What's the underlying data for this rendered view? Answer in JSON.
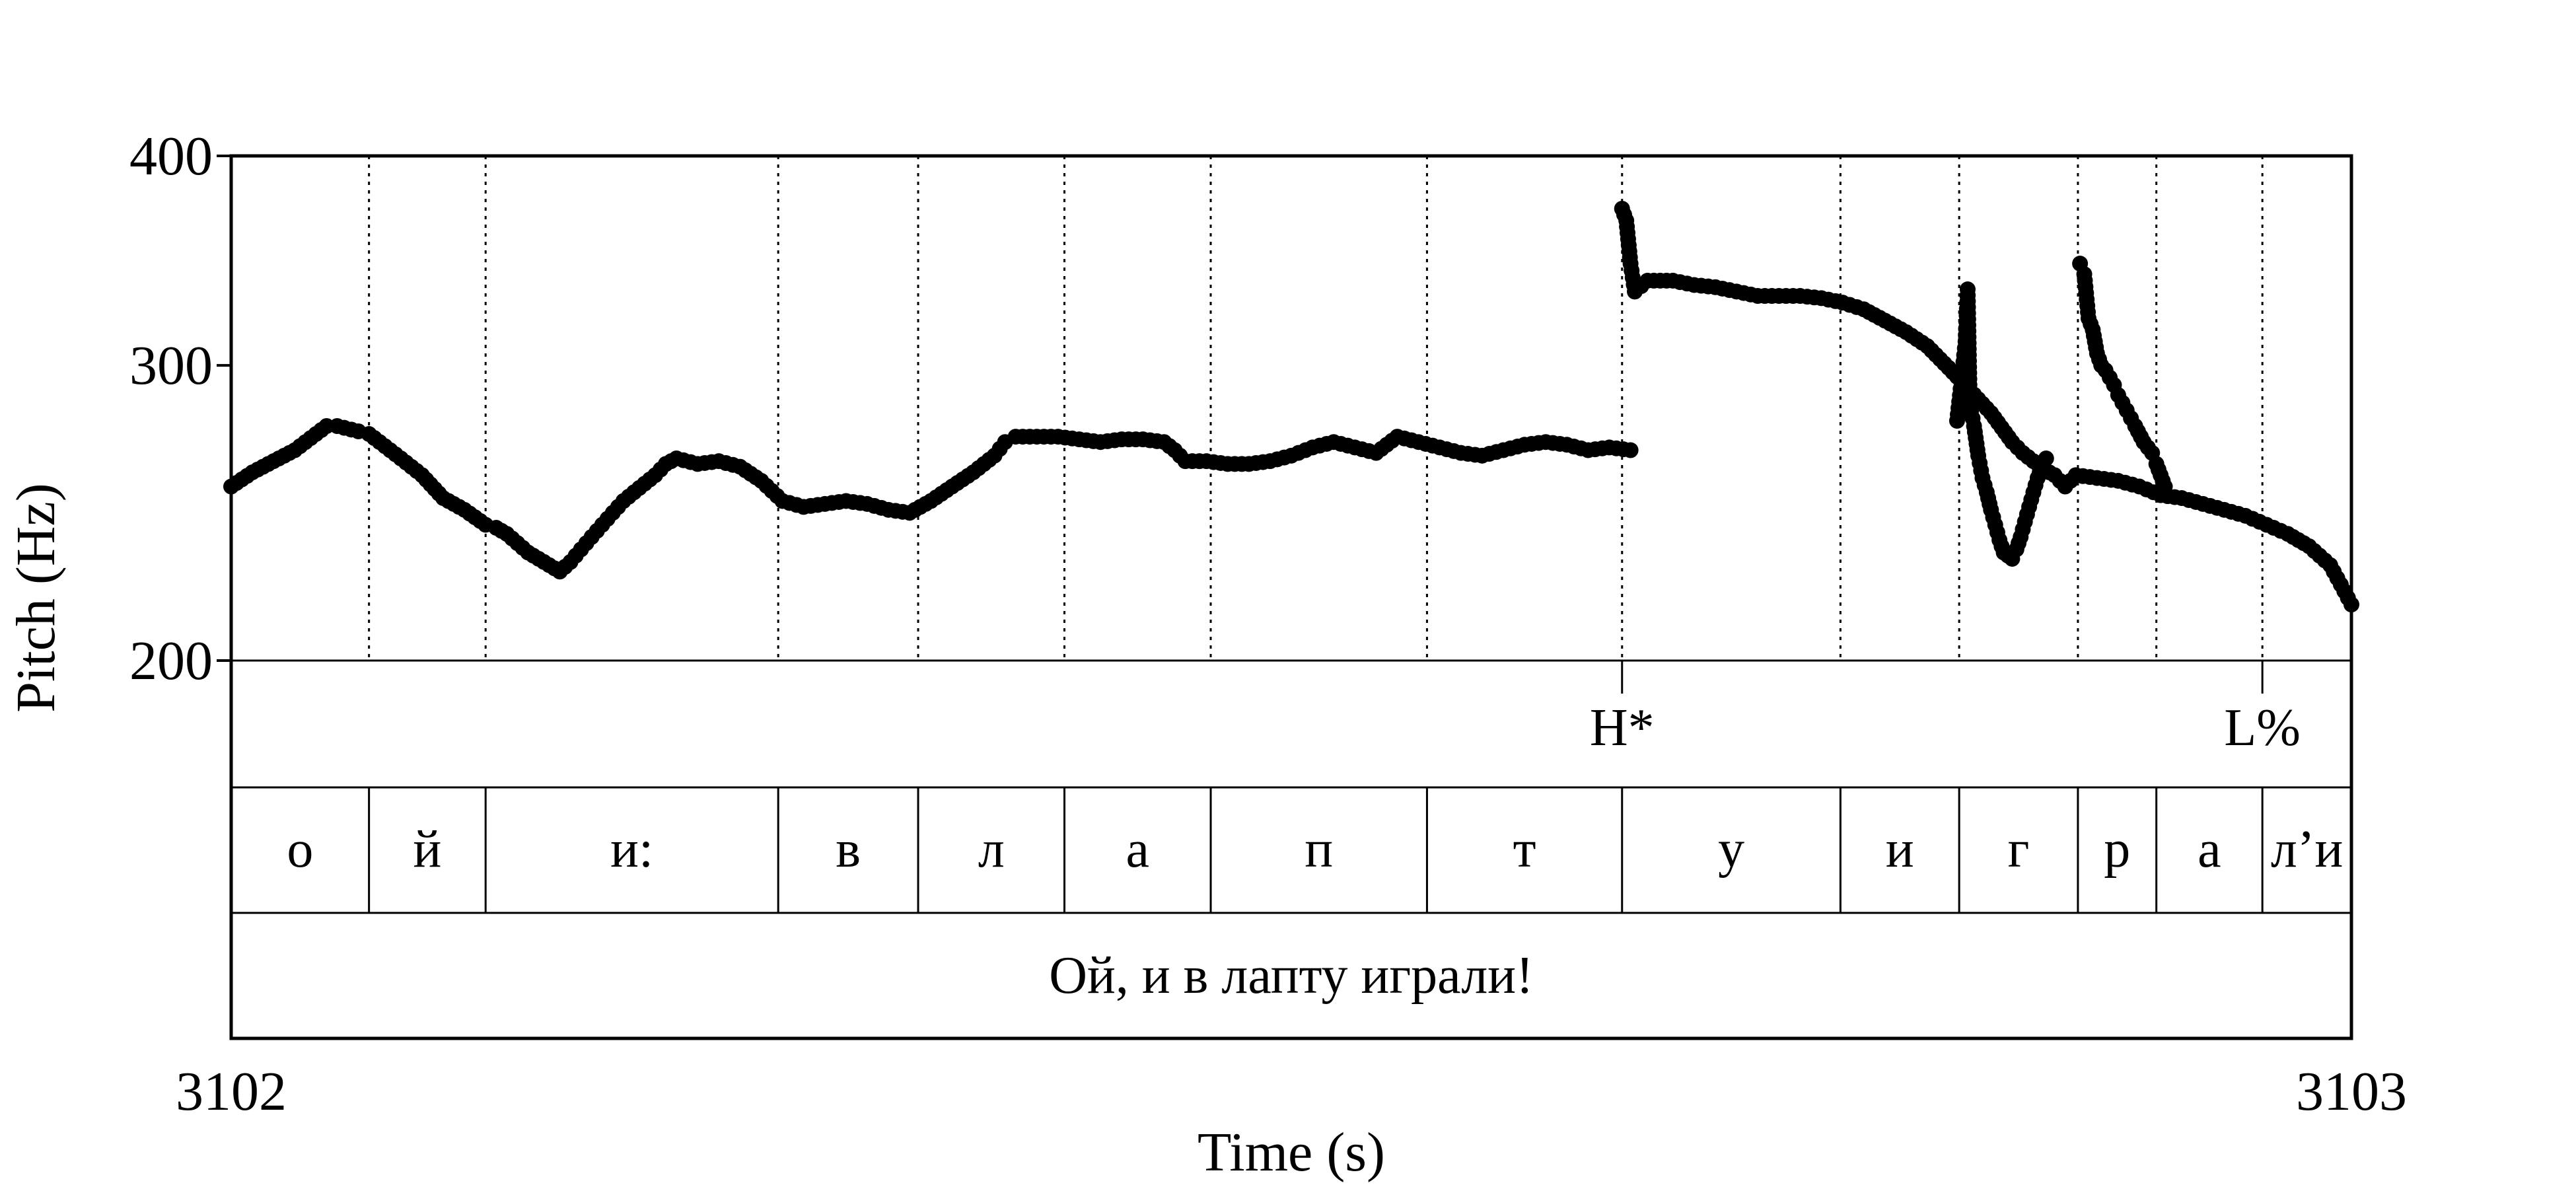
{
  "chart_data": {
    "type": "scatter",
    "title": "",
    "xlabel": "Time (s)",
    "ylabel": "Pitch (Hz)",
    "xlim": [
      3102,
      3103
    ],
    "ylim": [
      200,
      400
    ],
    "y_scale": "log",
    "x_tick_labels": [
      "3102",
      "3103"
    ],
    "y_tick_labels": [
      "400",
      "300",
      "200"
    ],
    "y_ticks": [
      400,
      300,
      200
    ],
    "grid": false,
    "boundaries": [
      3102.065,
      3102.12,
      3102.258,
      3102.324,
      3102.393,
      3102.462,
      3102.564,
      3102.656,
      3102.759,
      3102.815,
      3102.871,
      3102.908,
      3102.958
    ],
    "tones": [
      {
        "label": "H*",
        "time": 3102.656
      },
      {
        "label": "L%",
        "time": 3102.958
      }
    ],
    "segments": [
      {
        "label": "о",
        "start": 3102.0,
        "end": 3102.065
      },
      {
        "label": "й",
        "start": 3102.065,
        "end": 3102.12
      },
      {
        "label": "и:",
        "start": 3102.12,
        "end": 3102.258
      },
      {
        "label": "в",
        "start": 3102.258,
        "end": 3102.324
      },
      {
        "label": "л",
        "start": 3102.324,
        "end": 3102.393
      },
      {
        "label": "а",
        "start": 3102.393,
        "end": 3102.462
      },
      {
        "label": "п",
        "start": 3102.462,
        "end": 3102.564
      },
      {
        "label": "т",
        "start": 3102.564,
        "end": 3102.656
      },
      {
        "label": "у",
        "start": 3102.656,
        "end": 3102.759
      },
      {
        "label": "и",
        "start": 3102.759,
        "end": 3102.815
      },
      {
        "label": "г",
        "start": 3102.815,
        "end": 3102.871
      },
      {
        "label": "р",
        "start": 3102.871,
        "end": 3102.908
      },
      {
        "label": "а",
        "start": 3102.908,
        "end": 3102.958
      },
      {
        "label": "л’и",
        "start": 3102.958,
        "end": 3103.0
      }
    ],
    "sentence": "Ой, и в лапту играли!",
    "series": [
      {
        "values": [
          [
            3102.0,
            254
          ],
          [
            3102.01,
            259
          ],
          [
            3102.02,
            263
          ],
          [
            3102.03,
            267
          ],
          [
            3102.04,
            273
          ],
          [
            3102.045,
            276
          ],
          [
            3102.05,
            276
          ],
          [
            3102.06,
            274
          ],
          [
            3102.065,
            273
          ],
          [
            3102.07,
            270
          ],
          [
            3102.08,
            264
          ],
          [
            3102.09,
            258
          ],
          [
            3102.1,
            250
          ],
          [
            3102.11,
            246
          ],
          [
            3102.12,
            241
          ],
          [
            3102.125,
            240
          ],
          [
            3102.13,
            238
          ],
          [
            3102.135,
            235
          ],
          [
            3102.14,
            232
          ],
          [
            3102.145,
            230
          ],
          [
            3102.15,
            228
          ],
          [
            3102.155,
            226
          ],
          [
            3102.16,
            229
          ],
          [
            3102.165,
            233
          ],
          [
            3102.17,
            237
          ],
          [
            3102.175,
            241
          ],
          [
            3102.18,
            245
          ],
          [
            3102.185,
            249
          ],
          [
            3102.19,
            252
          ],
          [
            3102.195,
            255
          ],
          [
            3102.2,
            258
          ],
          [
            3102.205,
            262
          ],
          [
            3102.21,
            264
          ],
          [
            3102.22,
            262
          ],
          [
            3102.23,
            263
          ],
          [
            3102.24,
            261
          ],
          [
            3102.25,
            256
          ],
          [
            3102.26,
            249
          ],
          [
            3102.27,
            247
          ],
          [
            3102.28,
            248
          ],
          [
            3102.29,
            249
          ],
          [
            3102.3,
            248
          ],
          [
            3102.31,
            246
          ],
          [
            3102.32,
            245
          ],
          [
            3102.33,
            249
          ],
          [
            3102.34,
            254
          ],
          [
            3102.35,
            259
          ],
          [
            3102.36,
            265
          ],
          [
            3102.365,
            270
          ],
          [
            3102.37,
            272
          ],
          [
            3102.38,
            272
          ],
          [
            3102.39,
            272
          ],
          [
            3102.4,
            271
          ],
          [
            3102.41,
            270
          ],
          [
            3102.42,
            271
          ],
          [
            3102.43,
            271
          ],
          [
            3102.44,
            270
          ],
          [
            3102.445,
            267
          ],
          [
            3102.45,
            263
          ],
          [
            3102.46,
            263
          ],
          [
            3102.47,
            262
          ],
          [
            3102.48,
            262
          ],
          [
            3102.49,
            263
          ],
          [
            3102.5,
            265
          ],
          [
            3102.51,
            268
          ],
          [
            3102.52,
            270
          ],
          [
            3102.53,
            268
          ],
          [
            3102.54,
            266
          ],
          [
            3102.545,
            269
          ],
          [
            3102.55,
            272
          ],
          [
            3102.56,
            270
          ],
          [
            3102.57,
            268
          ],
          [
            3102.58,
            266
          ],
          [
            3102.59,
            265
          ],
          [
            3102.6,
            267
          ],
          [
            3102.61,
            269
          ],
          [
            3102.62,
            270
          ],
          [
            3102.63,
            269
          ],
          [
            3102.64,
            267
          ],
          [
            3102.65,
            268
          ],
          [
            3102.66,
            267
          ]
        ]
      },
      {
        "values": [
          [
            3102.656,
            372
          ],
          [
            3102.658,
            366
          ],
          [
            3102.66,
            345
          ],
          [
            3102.662,
            332
          ],
          [
            3102.668,
            337
          ],
          [
            3102.68,
            337
          ],
          [
            3102.69,
            335
          ],
          [
            3102.7,
            334
          ],
          [
            3102.71,
            332
          ],
          [
            3102.72,
            330
          ],
          [
            3102.73,
            330
          ],
          [
            3102.74,
            330
          ],
          [
            3102.75,
            329
          ],
          [
            3102.76,
            327
          ],
          [
            3102.77,
            324
          ],
          [
            3102.78,
            319
          ],
          [
            3102.79,
            314
          ],
          [
            3102.8,
            308
          ],
          [
            3102.81,
            299
          ],
          [
            3102.82,
            290
          ],
          [
            3102.83,
            281
          ],
          [
            3102.84,
            270
          ],
          [
            3102.845,
            266
          ],
          [
            3102.85,
            263
          ],
          [
            3102.855,
            260
          ],
          [
            3102.86,
            258
          ],
          [
            3102.865,
            254
          ],
          [
            3102.87,
            258
          ],
          [
            3102.88,
            257
          ],
          [
            3102.89,
            256
          ],
          [
            3102.9,
            254
          ],
          [
            3102.91,
            251
          ],
          [
            3102.92,
            250
          ],
          [
            3102.93,
            248
          ],
          [
            3102.94,
            246
          ],
          [
            3102.95,
            244
          ],
          [
            3102.96,
            241
          ],
          [
            3102.97,
            238
          ],
          [
            3102.98,
            234
          ],
          [
            3102.99,
            228
          ],
          [
            3102.995,
            222
          ],
          [
            3103.0,
            216
          ]
        ]
      },
      {
        "values": [
          [
            3102.814,
            278
          ],
          [
            3102.816,
            293
          ],
          [
            3102.818,
            310
          ],
          [
            3102.819,
            333
          ],
          [
            3102.82,
            285
          ],
          [
            3102.822,
            276
          ],
          [
            3102.824,
            265
          ],
          [
            3102.826,
            257
          ],
          [
            3102.828,
            252
          ],
          [
            3102.83,
            246
          ],
          [
            3102.832,
            241
          ],
          [
            3102.834,
            236
          ],
          [
            3102.836,
            232
          ],
          [
            3102.838,
            231
          ],
          [
            3102.84,
            230
          ],
          [
            3102.842,
            233
          ],
          [
            3102.844,
            237
          ],
          [
            3102.846,
            242
          ],
          [
            3102.848,
            247
          ],
          [
            3102.85,
            252
          ],
          [
            3102.852,
            257
          ],
          [
            3102.854,
            261
          ],
          [
            3102.856,
            264
          ]
        ]
      },
      {
        "values": [
          [
            3102.872,
            345
          ],
          [
            3102.874,
            340
          ],
          [
            3102.876,
            320
          ],
          [
            3102.878,
            315
          ],
          [
            3102.88,
            305
          ],
          [
            3102.882,
            300
          ],
          [
            3102.884,
            298
          ],
          [
            3102.886,
            295
          ],
          [
            3102.888,
            292
          ],
          [
            3102.89,
            288
          ],
          [
            3102.894,
            282
          ],
          [
            3102.898,
            276
          ],
          [
            3102.902,
            270
          ],
          [
            3102.906,
            266
          ],
          [
            3102.908,
            262
          ],
          [
            3102.91,
            258
          ],
          [
            3102.912,
            254
          ]
        ]
      }
    ]
  }
}
